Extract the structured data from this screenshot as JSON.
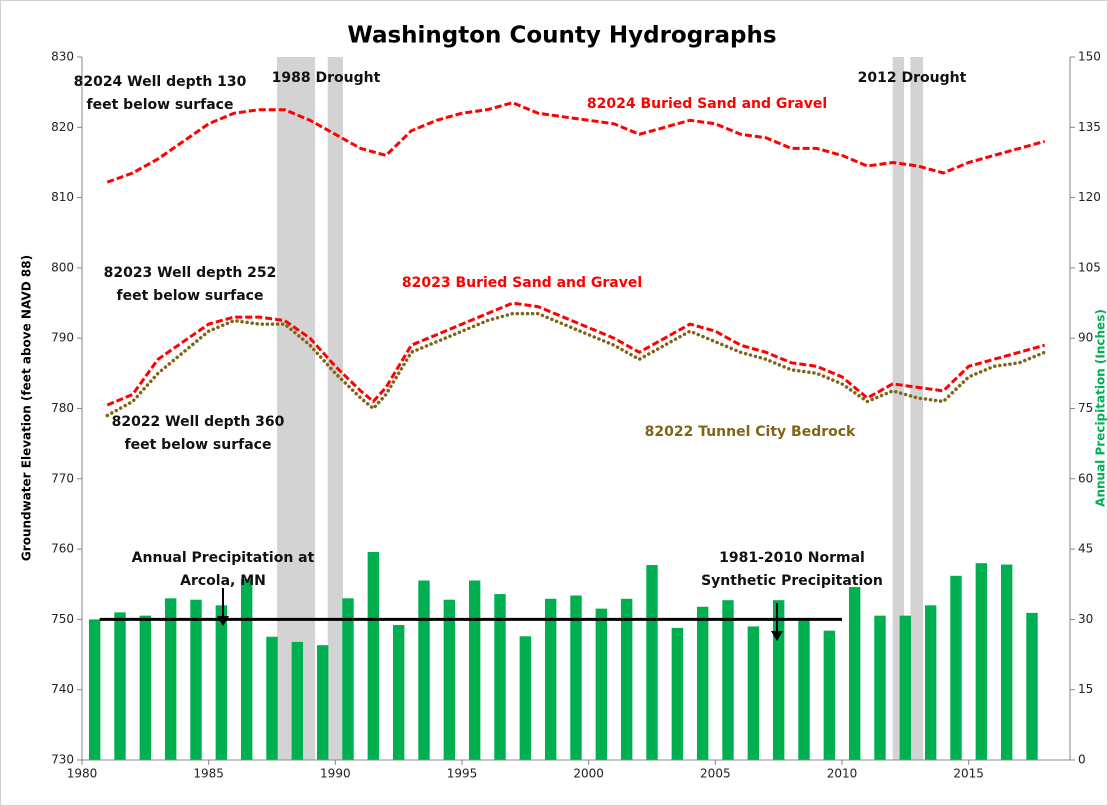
{
  "chart_data": {
    "type": "combo",
    "title": "Washington County Hydrographs",
    "ylabel": "Groundwater Elevation (feet above NAVD 88)",
    "y2label": "Annual Precipitation (Inches)",
    "xlim": [
      1980,
      2019
    ],
    "xticks": [
      1980,
      1985,
      1990,
      1995,
      2000,
      2005,
      2010,
      2015
    ],
    "ylim": [
      730,
      830
    ],
    "yticks": [
      730,
      740,
      750,
      760,
      770,
      780,
      790,
      800,
      810,
      820,
      830
    ],
    "y2lim": [
      0,
      150
    ],
    "y2ticks": [
      0,
      15,
      30,
      45,
      60,
      75,
      90,
      105,
      120,
      135,
      150
    ],
    "droughts": [
      [
        1987.7,
        1989.2
      ],
      [
        1989.7,
        1990.3
      ],
      [
        2012.0,
        2012.45
      ],
      [
        2012.7,
        2013.2
      ]
    ],
    "normal": {
      "value": 30,
      "x": [
        1980.7,
        2010
      ]
    },
    "line_x": [
      1981,
      1982,
      1983,
      1984,
      1985,
      1986,
      1987,
      1988,
      1989,
      1990,
      1991,
      1991.5,
      1992,
      1993,
      1994,
      1995,
      1996,
      1997,
      1998,
      1999,
      2000,
      2001,
      2002,
      2003,
      2004,
      2005,
      2006,
      2007,
      2008,
      2009,
      2010,
      2011,
      2012,
      2013,
      2014,
      2015,
      2016,
      2017,
      2018
    ],
    "series": [
      {
        "name": "82024 Buried Sand and Gravel",
        "color": "#ff0000",
        "style": "dashed",
        "axis": "y",
        "values": [
          812.2,
          813.5,
          815.5,
          818,
          820.5,
          822,
          822.5,
          822.5,
          821,
          819,
          817,
          816.5,
          816,
          819.5,
          821,
          822,
          822.5,
          823.5,
          822,
          821.5,
          821,
          820.5,
          819,
          820,
          821,
          820.5,
          819,
          818.5,
          817,
          817,
          816,
          814.5,
          815,
          814.5,
          813.5,
          815,
          816,
          817,
          818
        ]
      },
      {
        "name": "82023 Buried Sand and Gravel",
        "color": "#ff0000",
        "style": "dashed",
        "axis": "y",
        "values": [
          780.5,
          782,
          787,
          789.5,
          792,
          793,
          793,
          792.5,
          790,
          786,
          782.5,
          781,
          783,
          789,
          790.5,
          792,
          793.5,
          795,
          794.5,
          793,
          791.5,
          790,
          788,
          790,
          792,
          791,
          789,
          788,
          786.5,
          786,
          784.5,
          781.5,
          783.5,
          783,
          782.5,
          786,
          787,
          788,
          789
        ]
      },
      {
        "name": "82022 Tunnel City Bedrock",
        "color": "#7f6517",
        "style": "dotted",
        "axis": "y",
        "values": [
          779,
          781,
          785,
          788,
          791,
          792.5,
          792,
          792,
          789,
          785,
          781.5,
          780,
          782,
          788,
          789.5,
          791,
          792.5,
          793.5,
          793.5,
          792,
          790.5,
          789,
          787,
          789,
          791,
          789.5,
          788,
          787,
          785.5,
          785,
          783.5,
          781,
          782.5,
          781.5,
          781,
          784.5,
          786,
          786.5,
          788
        ]
      }
    ],
    "precipitation": {
      "color": "#00b050",
      "axis": "y2",
      "x": [
        1981,
        1982,
        1983,
        1984,
        1985,
        1986,
        1987,
        1988,
        1989,
        1990,
        1991,
        1992,
        1993,
        1994,
        1995,
        1996,
        1997,
        1998,
        1999,
        2000,
        2001,
        2002,
        2003,
        2004,
        2005,
        2006,
        2007,
        2008,
        2009,
        2010,
        2011,
        2012,
        2013,
        2014,
        2015,
        2016,
        2017,
        2018
      ],
      "values": [
        30.0,
        31.5,
        30.8,
        34.5,
        34.2,
        33.0,
        38.6,
        26.3,
        25.2,
        24.5,
        34.5,
        44.4,
        28.8,
        38.3,
        34.2,
        38.3,
        35.4,
        26.4,
        34.4,
        35.1,
        32.3,
        34.4,
        41.6,
        28.2,
        32.7,
        34.1,
        28.5,
        34.1,
        29.7,
        27.6,
        36.9,
        30.8,
        30.8,
        33.0,
        39.3,
        42.0,
        41.7,
        31.4
      ]
    },
    "annotations": [
      {
        "lines": [
          "82024 Well depth 130",
          "feet below surface"
        ]
      },
      {
        "lines": [
          "1988 Drought"
        ]
      },
      {
        "lines": [
          "2012 Drought"
        ]
      },
      {
        "lines": [
          "82024 Buried Sand and Gravel"
        ],
        "color": "#ff0000"
      },
      {
        "lines": [
          "82023 Well depth 252",
          "feet below surface"
        ]
      },
      {
        "lines": [
          "82023 Buried Sand and Gravel"
        ],
        "color": "#ff0000"
      },
      {
        "lines": [
          "82022 Well depth 360",
          "feet below surface"
        ]
      },
      {
        "lines": [
          "82022 Tunnel City Bedrock"
        ],
        "color": "#7f6517"
      },
      {
        "lines": [
          "Annual Precipitation at",
          "Arcola, MN"
        ]
      },
      {
        "lines": [
          "1981-2010  Normal",
          "Synthetic Precipitation"
        ]
      }
    ]
  }
}
